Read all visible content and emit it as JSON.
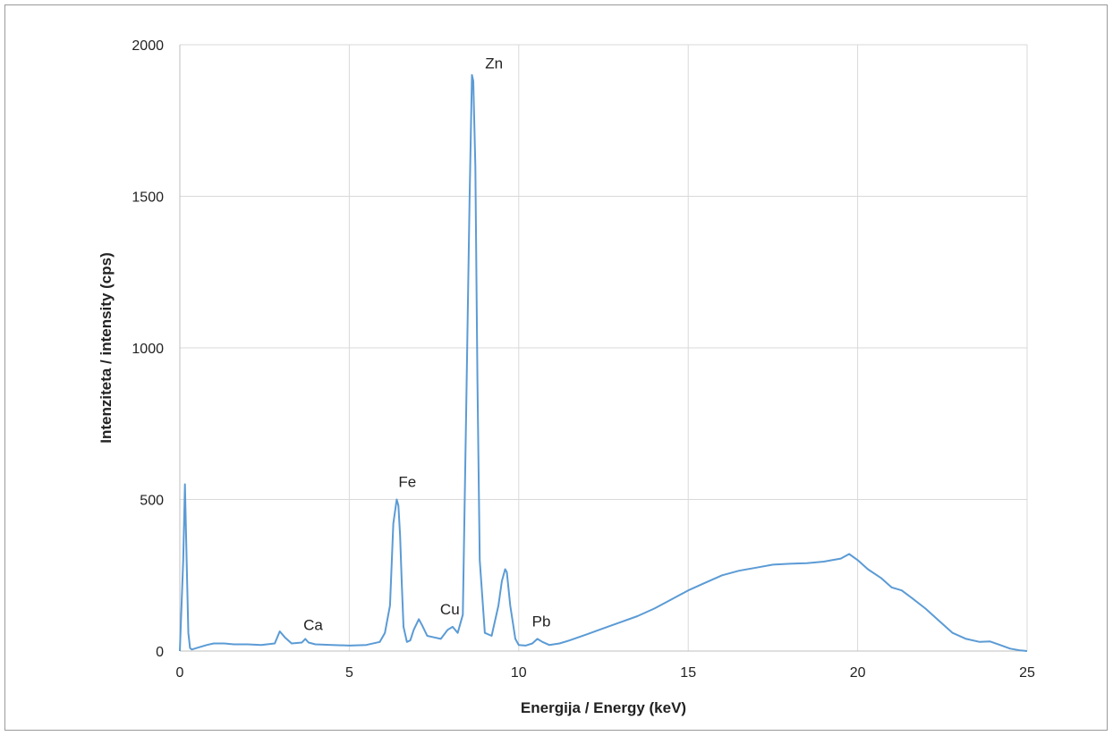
{
  "chart_data": {
    "type": "line",
    "xlabel": "Energija / Energy (keV)",
    "ylabel": "Intenziteta / intensity (cps)",
    "xlim": [
      0,
      25
    ],
    "ylim": [
      0,
      2000
    ],
    "x_ticks": [
      "0",
      "5",
      "10",
      "15",
      "20",
      "25"
    ],
    "y_ticks": [
      "0",
      "500",
      "1000",
      "1500",
      "2000"
    ],
    "grid": true,
    "line_color": "#5b9bd5",
    "annotations": [
      {
        "label": "Ca",
        "x": 3.7,
        "y": 40
      },
      {
        "label": "Fe",
        "x": 6.4,
        "y": 500
      },
      {
        "label": "Cu",
        "x": 8.05,
        "y": 80
      },
      {
        "label": "Zn",
        "x": 8.64,
        "y": 1910
      },
      {
        "label": "Pb",
        "x": 10.55,
        "y": 40
      }
    ],
    "series": [
      {
        "x": [
          0,
          0.1,
          0.15,
          0.2,
          0.25,
          0.3,
          0.35,
          0.5,
          0.8,
          1.0,
          1.3,
          1.6,
          2.0,
          2.4,
          2.8,
          2.95,
          3.1,
          3.3,
          3.6,
          3.7,
          3.8,
          4.0,
          4.5,
          5.0,
          5.5,
          5.9,
          6.05,
          6.2,
          6.3,
          6.4,
          6.45,
          6.5,
          6.55,
          6.6,
          6.7,
          6.8,
          6.9,
          7.05,
          7.15,
          7.3,
          7.5,
          7.7,
          7.9,
          8.05,
          8.2,
          8.35,
          8.45,
          8.55,
          8.62,
          8.66,
          8.72,
          8.78,
          8.85,
          9.0,
          9.2,
          9.4,
          9.5,
          9.6,
          9.65,
          9.75,
          9.9,
          10.0,
          10.2,
          10.4,
          10.55,
          10.7,
          10.9,
          11.2,
          11.5,
          12.0,
          12.5,
          13.0,
          13.5,
          14.0,
          14.5,
          15.0,
          15.5,
          16.0,
          16.5,
          17.0,
          17.5,
          18.0,
          18.5,
          19.0,
          19.5,
          19.75,
          20.0,
          20.3,
          20.7,
          21.0,
          21.3,
          21.6,
          22.0,
          22.4,
          22.8,
          23.2,
          23.6,
          23.9,
          24.2,
          24.5,
          24.8,
          25.0
        ],
        "y": [
          0,
          300,
          550,
          300,
          60,
          10,
          5,
          10,
          20,
          25,
          25,
          22,
          22,
          20,
          25,
          65,
          45,
          25,
          28,
          40,
          28,
          22,
          20,
          18,
          20,
          30,
          60,
          150,
          420,
          500,
          480,
          380,
          220,
          80,
          30,
          35,
          70,
          105,
          85,
          50,
          45,
          40,
          70,
          80,
          60,
          120,
          800,
          1500,
          1900,
          1880,
          1600,
          900,
          300,
          60,
          50,
          150,
          230,
          270,
          260,
          150,
          40,
          20,
          18,
          25,
          40,
          30,
          20,
          25,
          35,
          55,
          75,
          95,
          115,
          140,
          170,
          200,
          225,
          250,
          265,
          275,
          285,
          288,
          290,
          295,
          305,
          320,
          300,
          270,
          240,
          210,
          200,
          175,
          140,
          100,
          60,
          40,
          30,
          32,
          20,
          8,
          2,
          0
        ]
      }
    ]
  }
}
